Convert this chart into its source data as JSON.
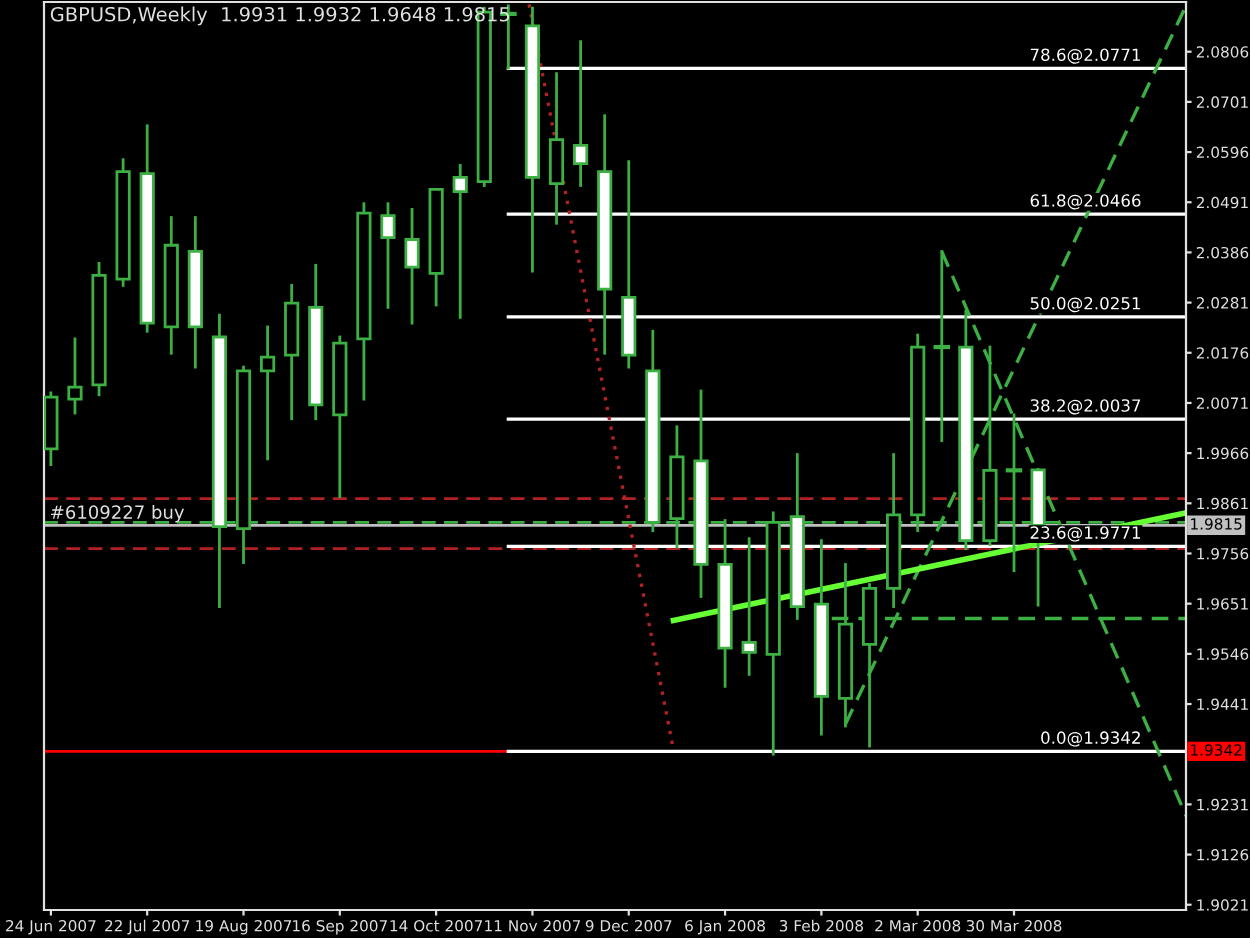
{
  "chart_data": {
    "type": "candlestick",
    "title": "GBPUSD,Weekly  1.9931 1.9932 1.9648 1.9815",
    "color": "#3cb043",
    "x": [
      "2007-06-24",
      "2007-07-01",
      "2007-07-08",
      "2007-07-15",
      "2007-07-22",
      "2007-07-29",
      "2007-08-05",
      "2007-08-12",
      "2007-08-19",
      "2007-08-26",
      "2007-09-02",
      "2007-09-09",
      "2007-09-16",
      "2007-09-23",
      "2007-09-30",
      "2007-10-07",
      "2007-10-14",
      "2007-10-21",
      "2007-10-28",
      "2007-11-04",
      "2007-11-11",
      "2007-11-18",
      "2007-11-25",
      "2007-12-02",
      "2007-12-09",
      "2007-12-16",
      "2007-12-23",
      "2007-12-30",
      "2008-01-06",
      "2008-01-13",
      "2008-01-20",
      "2008-01-27",
      "2008-02-03",
      "2008-02-10",
      "2008-02-17",
      "2008-02-24",
      "2008-03-02",
      "2008-03-09",
      "2008-03-16",
      "2008-03-23",
      "2008-03-30",
      "2008-04-06"
    ],
    "ohlc": [
      [
        1.9975,
        2.0092,
        1.9942,
        2.0083
      ],
      [
        2.0079,
        2.0205,
        2.005,
        2.0104
      ],
      [
        2.0109,
        2.0363,
        2.0088,
        2.0338
      ],
      [
        2.033,
        2.058,
        2.0317,
        2.0555
      ],
      [
        2.0551,
        2.0651,
        2.0221,
        2.0238
      ],
      [
        2.023,
        2.0459,
        2.0175,
        2.0401
      ],
      [
        2.0388,
        2.0459,
        2.0146,
        2.023
      ],
      [
        2.0209,
        2.0255,
        1.9645,
        1.9812
      ],
      [
        1.9808,
        2.0146,
        1.9737,
        2.0138
      ],
      [
        2.0138,
        2.023,
        1.9954,
        2.0167
      ],
      [
        2.0171,
        2.0317,
        2.0038,
        2.028
      ],
      [
        2.0271,
        2.0359,
        2.0038,
        2.0067
      ],
      [
        2.0046,
        2.0209,
        1.9875,
        2.0196
      ],
      [
        2.0205,
        2.0488,
        2.0079,
        2.0468
      ],
      [
        2.0463,
        2.0488,
        2.0271,
        2.0417
      ],
      [
        2.0413,
        2.0476,
        2.0238,
        2.0355
      ],
      [
        2.0342,
        2.0518,
        2.0276,
        2.0518
      ],
      [
        2.0543,
        2.0568,
        2.025,
        2.0513
      ],
      [
        2.0534,
        2.0897,
        2.0526,
        2.0889
      ],
      [
        2.0885,
        2.0902,
        2.0772,
        2.0885
      ],
      [
        2.086,
        2.0897,
        2.0347,
        2.0543
      ],
      [
        2.053,
        2.076,
        2.0447,
        2.0622
      ],
      [
        2.061,
        2.0827,
        2.0526,
        2.0572
      ],
      [
        2.0555,
        2.0672,
        2.0175,
        2.0309
      ],
      [
        2.0292,
        2.0576,
        2.0146,
        2.0171
      ],
      [
        2.0138,
        2.0221,
        1.9804,
        1.9821
      ],
      [
        1.9829,
        2.0021,
        1.977,
        1.9958
      ],
      [
        1.995,
        2.0096,
        1.9666,
        1.9733
      ],
      [
        1.9733,
        1.9825,
        1.9478,
        1.9558
      ],
      [
        1.957,
        1.9787,
        1.9503,
        1.9549
      ],
      [
        1.9545,
        1.9841,
        1.9336,
        1.9821
      ],
      [
        1.9833,
        1.9963,
        1.962,
        1.9645
      ],
      [
        1.965,
        1.9783,
        1.9378,
        1.9457
      ],
      [
        1.9453,
        1.9733,
        1.9395,
        1.9608
      ],
      [
        1.9566,
        1.9691,
        1.9353,
        1.9683
      ],
      [
        1.9683,
        1.9963,
        1.9645,
        1.9837
      ],
      [
        1.9837,
        2.0213,
        1.9804,
        2.0188
      ],
      [
        2.0188,
        2.0388,
        1.9992,
        2.0188
      ],
      [
        2.0188,
        2.0263,
        1.9766,
        1.9783
      ],
      [
        1.9783,
        2.0188,
        1.9775,
        1.993
      ],
      [
        1.993,
        2.0046,
        1.972,
        1.993
      ],
      [
        1.9931,
        1.9932,
        1.9648,
        1.9815
      ]
    ],
    "series": [
      {
        "type": "line",
        "name": "78.6@2.0771",
        "color": "#ffffff",
        "line_style": "solid",
        "x": [
          "2007-11-04",
          "2008-05-19"
        ],
        "values": [
          2.0771,
          2.0771
        ]
      },
      {
        "type": "line",
        "name": "61.8@2.0466",
        "color": "#ffffff",
        "line_style": "solid",
        "x": [
          "2007-11-04",
          "2008-05-19"
        ],
        "values": [
          2.0466,
          2.0466
        ]
      },
      {
        "type": "line",
        "name": "50.0@2.0251",
        "color": "#ffffff",
        "line_style": "solid",
        "x": [
          "2007-11-04",
          "2008-05-19"
        ],
        "values": [
          2.0251,
          2.0251
        ]
      },
      {
        "type": "line",
        "name": "38.2@2.0037",
        "color": "#ffffff",
        "line_style": "solid",
        "x": [
          "2007-11-04",
          "2008-05-19"
        ],
        "values": [
          2.0037,
          2.0037
        ]
      },
      {
        "type": "line",
        "name": "23.6@1.9771",
        "color": "#ffffff",
        "line_style": "solid",
        "x": [
          "2007-11-04",
          "2008-05-19"
        ],
        "values": [
          1.9771,
          1.9771
        ]
      },
      {
        "type": "line",
        "name": "0.0@1.9342",
        "color": "#ffffff",
        "line_style": "solid",
        "x": [
          "2007-11-04",
          "2008-05-19"
        ],
        "values": [
          1.9342,
          1.9342
        ]
      },
      {
        "type": "line",
        "color": "#b22222",
        "line_style": "dotted",
        "x": [
          "2007-11-10",
          "2007-12-22"
        ],
        "values": [
          2.0905,
          1.9345
        ]
      },
      {
        "type": "line",
        "color": "#3cb043",
        "line_style": "dashed",
        "x": [
          "2008-02-10",
          "2008-05-19"
        ],
        "values": [
          1.9399,
          2.0902
        ]
      },
      {
        "type": "line",
        "color": "#3cb043",
        "line_style": "dashed",
        "x": [
          "2008-03-09",
          "2008-05-19"
        ],
        "values": [
          2.0388,
          1.9207
        ]
      },
      {
        "type": "line",
        "color": "#3cb043",
        "line_style": "dashed",
        "x": [
          "2008-02-06",
          "2008-05-19"
        ],
        "values": [
          1.962,
          1.962
        ]
      },
      {
        "type": "line",
        "color": "#66ff33",
        "line_style": "solid",
        "x": [
          "2007-12-22",
          "2008-05-19"
        ],
        "values": [
          1.9616,
          1.9841
        ]
      }
    ],
    "ref_lines": [
      {
        "axis": "y",
        "value": 1.9871,
        "color": "#b22222",
        "line_style": "dashed"
      },
      {
        "axis": "y",
        "value": 1.9766,
        "color": "#b22222",
        "line_style": "dashed"
      },
      {
        "axis": "y",
        "value": 1.9821,
        "color": "#3cb043",
        "line_style": "dashed",
        "label": "#6109227 buy"
      },
      {
        "axis": "y",
        "value": 1.9815,
        "color": "#c0c0c0",
        "line_style": "solid",
        "label": "1.9815"
      },
      {
        "axis": "y",
        "value": 1.9342,
        "color": "#ff0000",
        "line_style": "solid",
        "label": "1.9342"
      }
    ],
    "xlim": [
      "2007-06-22",
      "2008-05-19"
    ],
    "xticks": [
      {
        "value": "2007-06-24",
        "label": "24 Jun 2007"
      },
      {
        "value": "2007-07-22",
        "label": "22 Jul 2007"
      },
      {
        "value": "2007-08-19",
        "label": "19 Aug 2007"
      },
      {
        "value": "2007-09-16",
        "label": "16 Sep 2007"
      },
      {
        "value": "2007-10-14",
        "label": "14 Oct 2007"
      },
      {
        "value": "2007-11-11",
        "label": "11 Nov 2007"
      },
      {
        "value": "2007-12-09",
        "label": "9 Dec 2007"
      },
      {
        "value": "2008-01-06",
        "label": "6 Jan 2008"
      },
      {
        "value": "2008-02-03",
        "label": "3 Feb 2008"
      },
      {
        "value": "2008-03-02",
        "label": "2 Mar 2008"
      },
      {
        "value": "2008-03-30",
        "label": "30 Mar 2008"
      }
    ],
    "ylim": [
      1.901,
      2.091
    ],
    "yticks": [
      1.9021,
      1.9126,
      1.9231,
      1.9441,
      1.9546,
      1.9651,
      1.9756,
      1.9861,
      1.9966,
      2.0071,
      2.0176,
      2.0281,
      2.0386,
      2.0491,
      2.0596,
      2.0701,
      2.0806
    ]
  }
}
